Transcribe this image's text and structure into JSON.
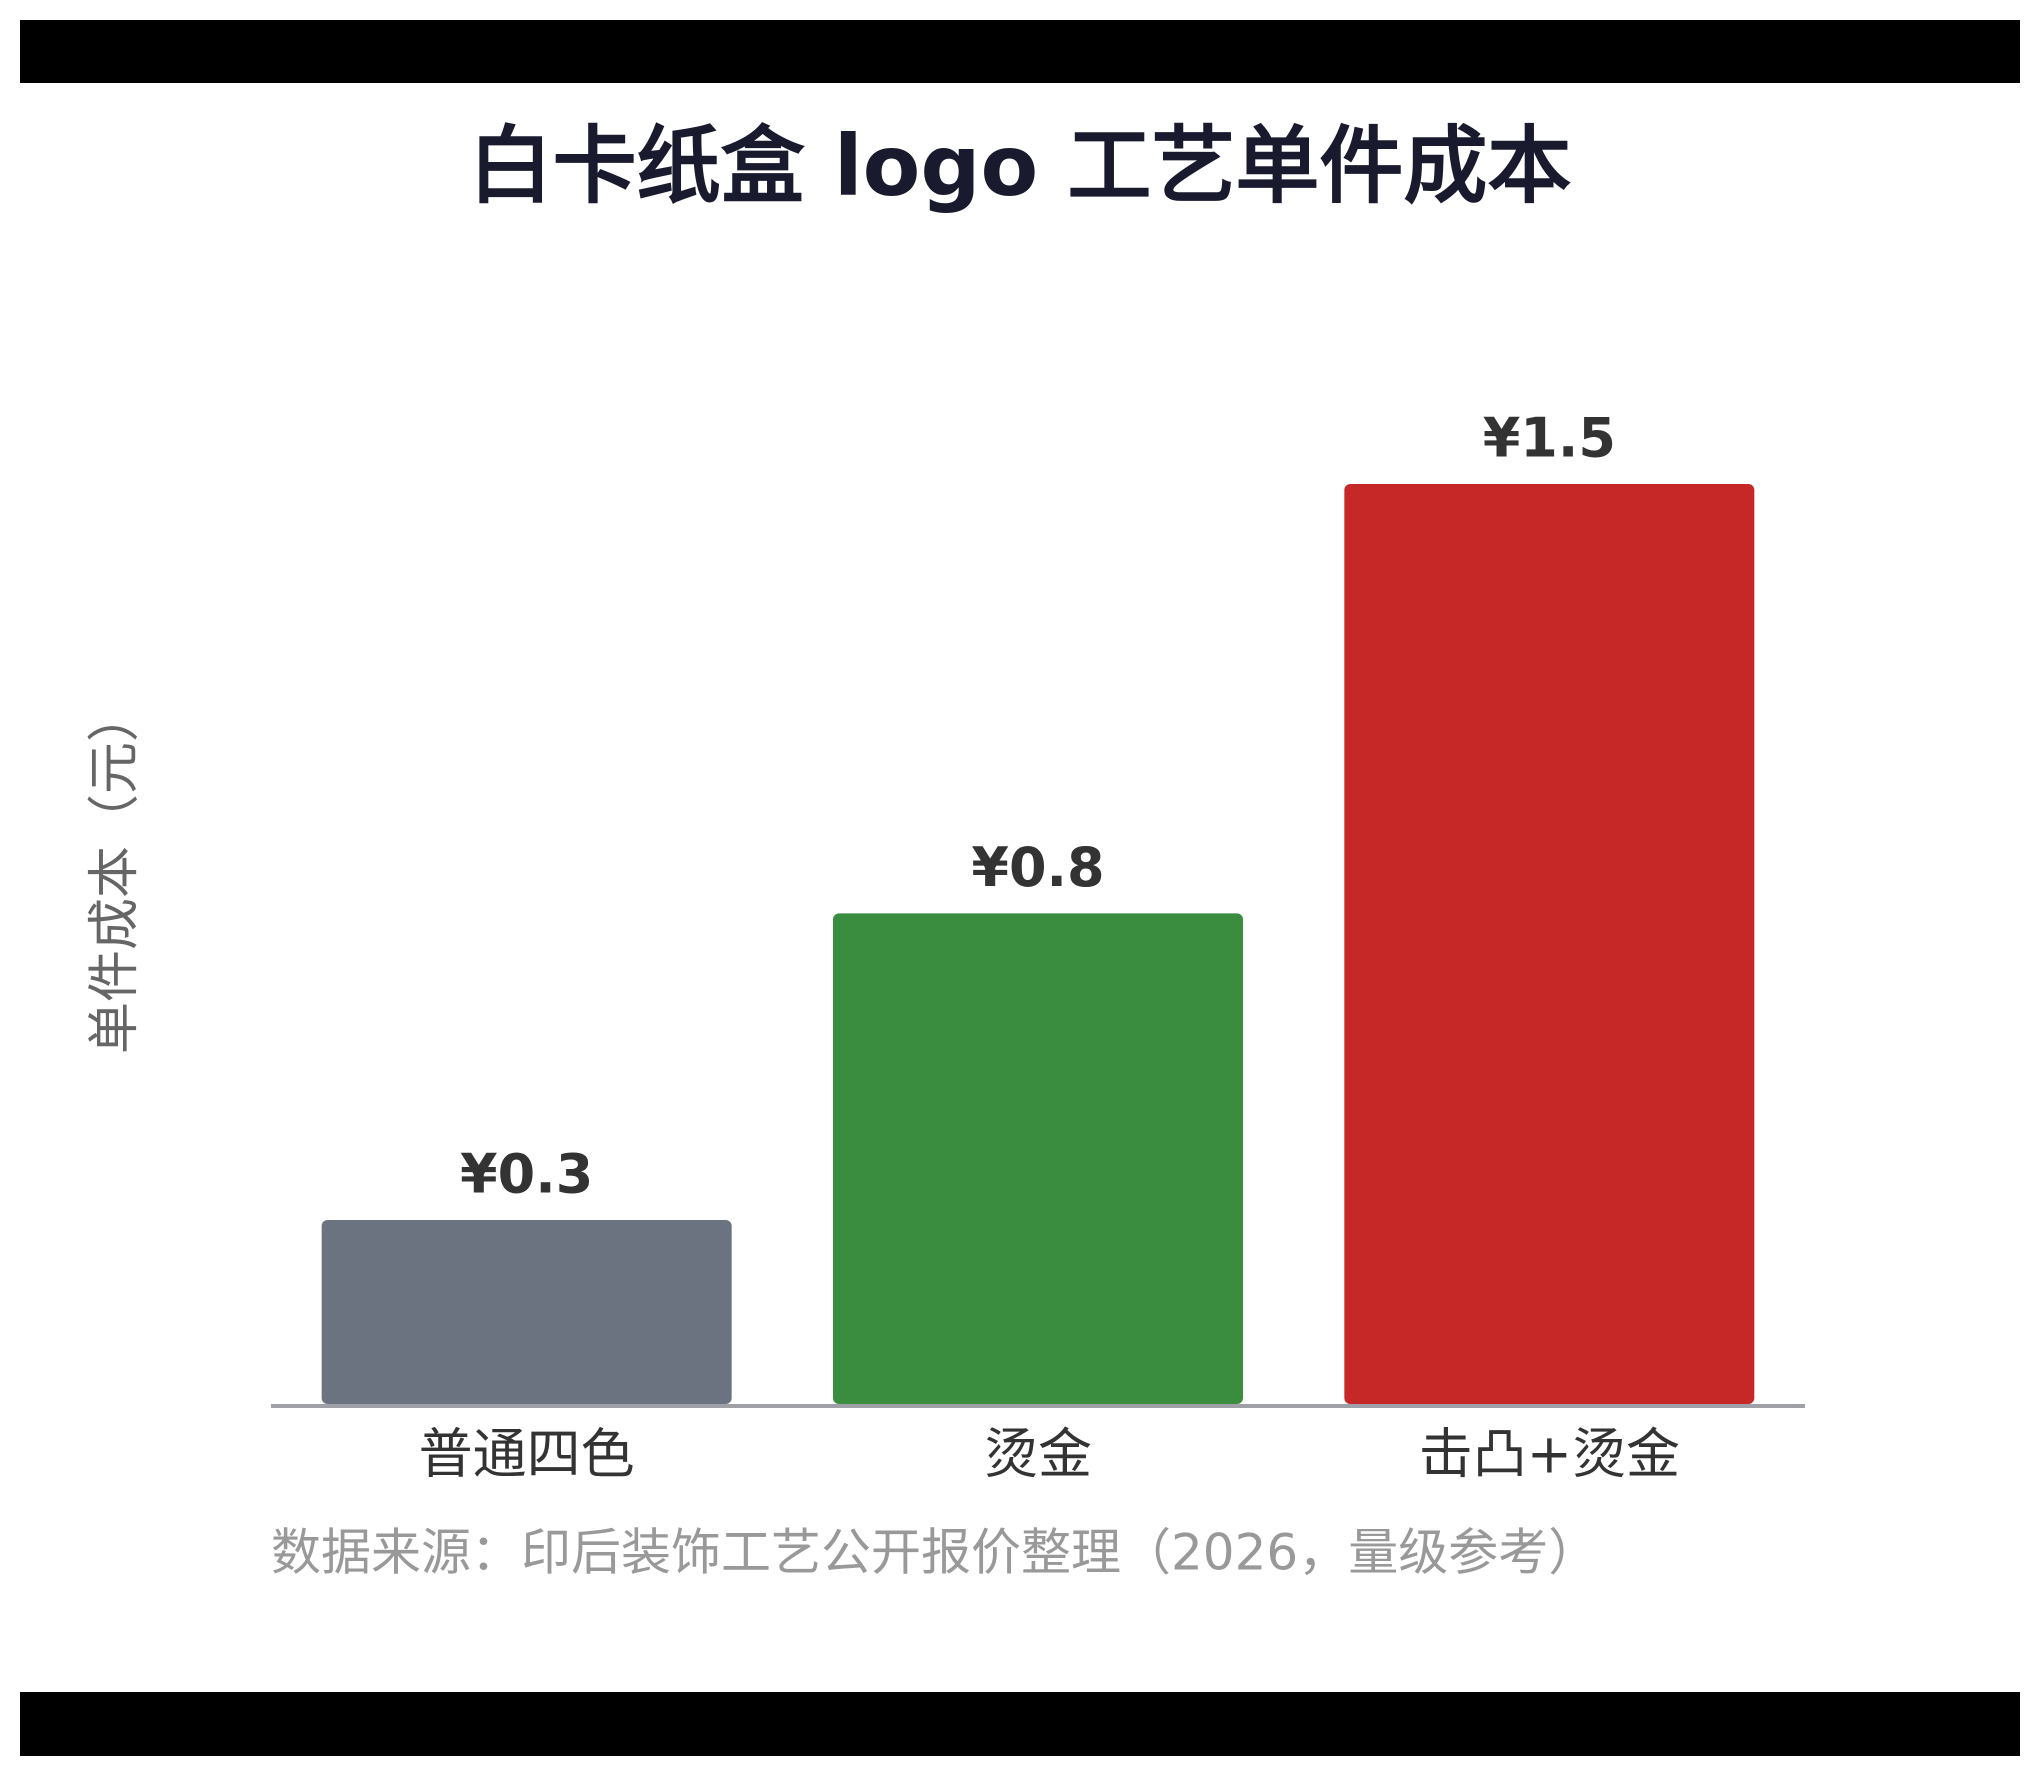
{
  "chart_data": {
    "type": "bar",
    "title": "白卡纸盒 logo 工艺单件成本",
    "ylabel": "单件成本（元）",
    "categories": [
      "普通四色",
      "烫金",
      "击凸+烫金"
    ],
    "values": [
      0.3,
      0.8,
      1.5
    ],
    "value_labels": [
      "¥0.3",
      "¥0.8",
      "¥1.5"
    ],
    "colors": [
      "#6b7280",
      "#3a8c3f",
      "#c62828"
    ],
    "source": "数据来源：印后装饰工艺公开报价整理（2026，量级参考）"
  }
}
